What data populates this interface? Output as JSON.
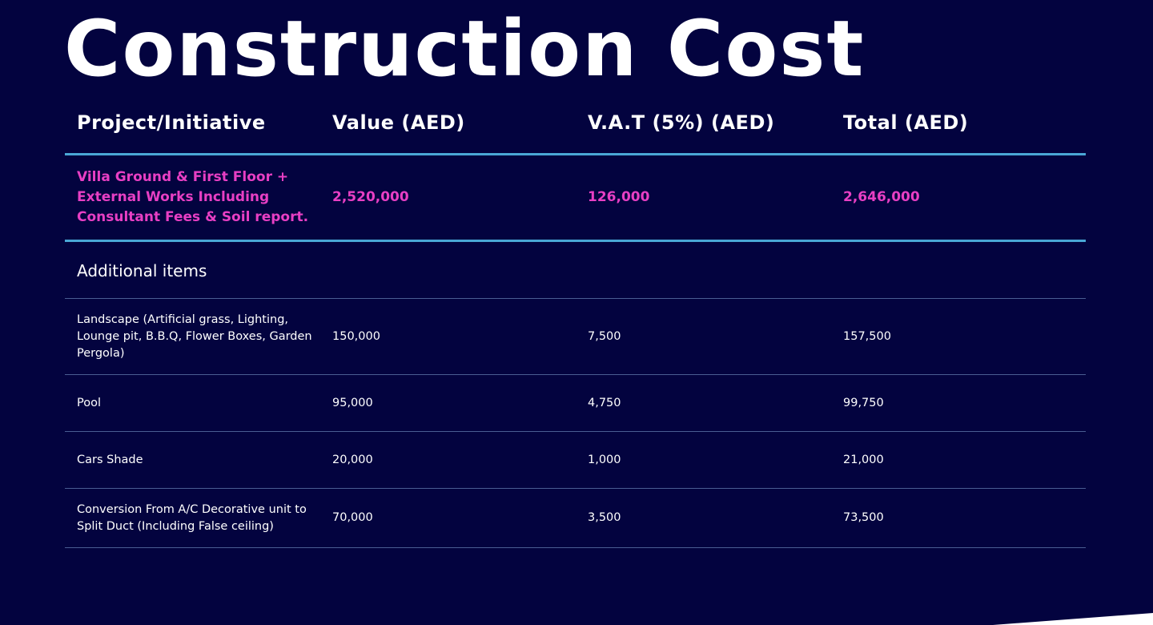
{
  "title": "Construction Cost",
  "colors": {
    "background": "#03033f",
    "highlight_text": "#e83fc4",
    "accent_line": "#4aa7d6",
    "divider_line": "#4a5d92",
    "corner_shape": "#ffffff"
  },
  "table": {
    "headers": [
      "Project/Initiative",
      "Value (AED)",
      "V.A.T (5%) (AED)",
      "Total (AED)"
    ],
    "main_row": {
      "project": "Villa Ground & First Floor + External Works Including Consultant Fees & Soil report.",
      "value": "2,520,000",
      "vat": "126,000",
      "total": "2,646,000"
    },
    "section_label": "Additional items",
    "items": [
      {
        "project": "Landscape (Artificial grass, Lighting, Lounge pit, B.B.Q, Flower Boxes, Garden Pergola)",
        "value": "150,000",
        "vat": "7,500",
        "total": "157,500"
      },
      {
        "project": "Pool",
        "value": "95,000",
        "vat": "4,750",
        "total": "99,750"
      },
      {
        "project": "Cars Shade",
        "value": "20,000",
        "vat": "1,000",
        "total": "21,000"
      },
      {
        "project": "Conversion From A/C Decorative unit to Split Duct (Including False ceiling)",
        "value": "70,000",
        "vat": "3,500",
        "total": "73,500"
      }
    ]
  }
}
